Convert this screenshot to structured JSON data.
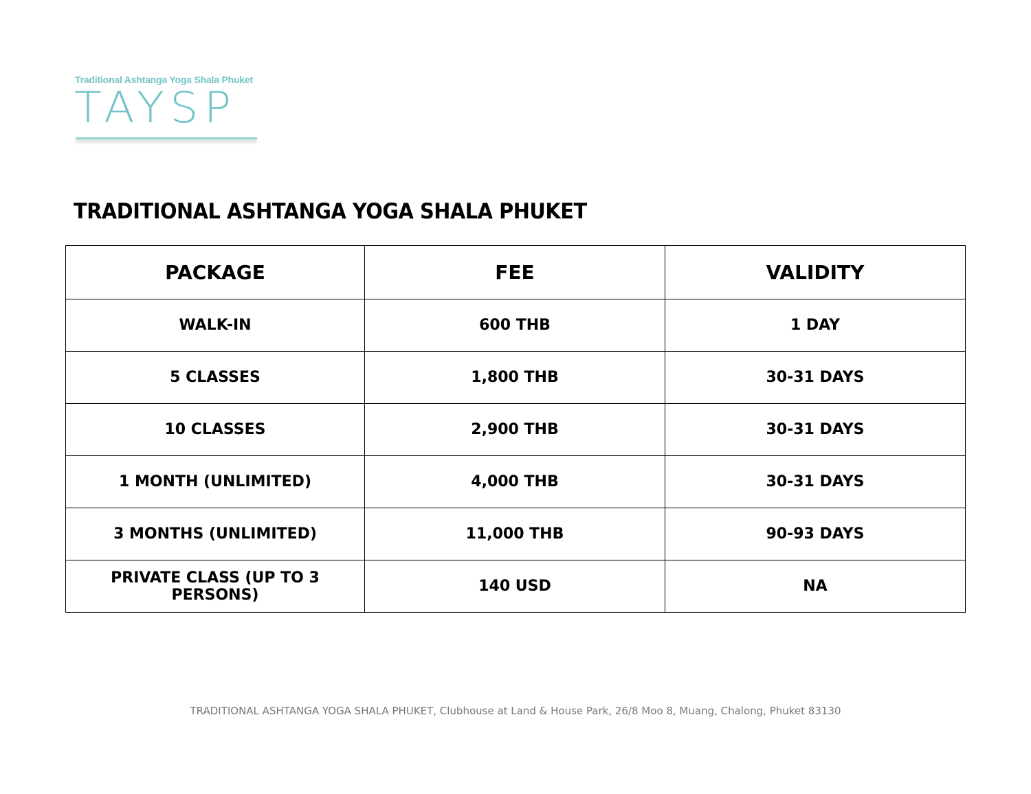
{
  "logo": {
    "tagline": "Traditional Ashtanga Yoga Shala Phuket",
    "mark": "TAYSP",
    "color": "#72c3c9"
  },
  "title": "TRADITIONAL ASHTANGA YOGA SHALA PHUKET",
  "table": {
    "headers": [
      "PACKAGE",
      "FEE",
      "VALIDITY"
    ],
    "rows": [
      [
        "WALK-IN",
        "600 THB",
        "1 DAY"
      ],
      [
        "5 CLASSES",
        "1,800 THB",
        "30-31 DAYS"
      ],
      [
        "10 CLASSES",
        "2,900 THB",
        "30-31 DAYS"
      ],
      [
        "1 MONTH (UNLIMITED)",
        "4,000 THB",
        "30-31 DAYS"
      ],
      [
        "3 MONTHS (UNLIMITED)",
        "11,000 THB",
        "90-93 DAYS"
      ],
      [
        "PRIVATE CLASS (UP TO 3 PERSONS)",
        "140 USD",
        "NA"
      ]
    ]
  },
  "footer": "TRADITIONAL ASHTANGA YOGA SHALA PHUKET, Clubhouse at Land & House Park, 26/8 Moo 8, Muang, Chalong, Phuket 83130"
}
